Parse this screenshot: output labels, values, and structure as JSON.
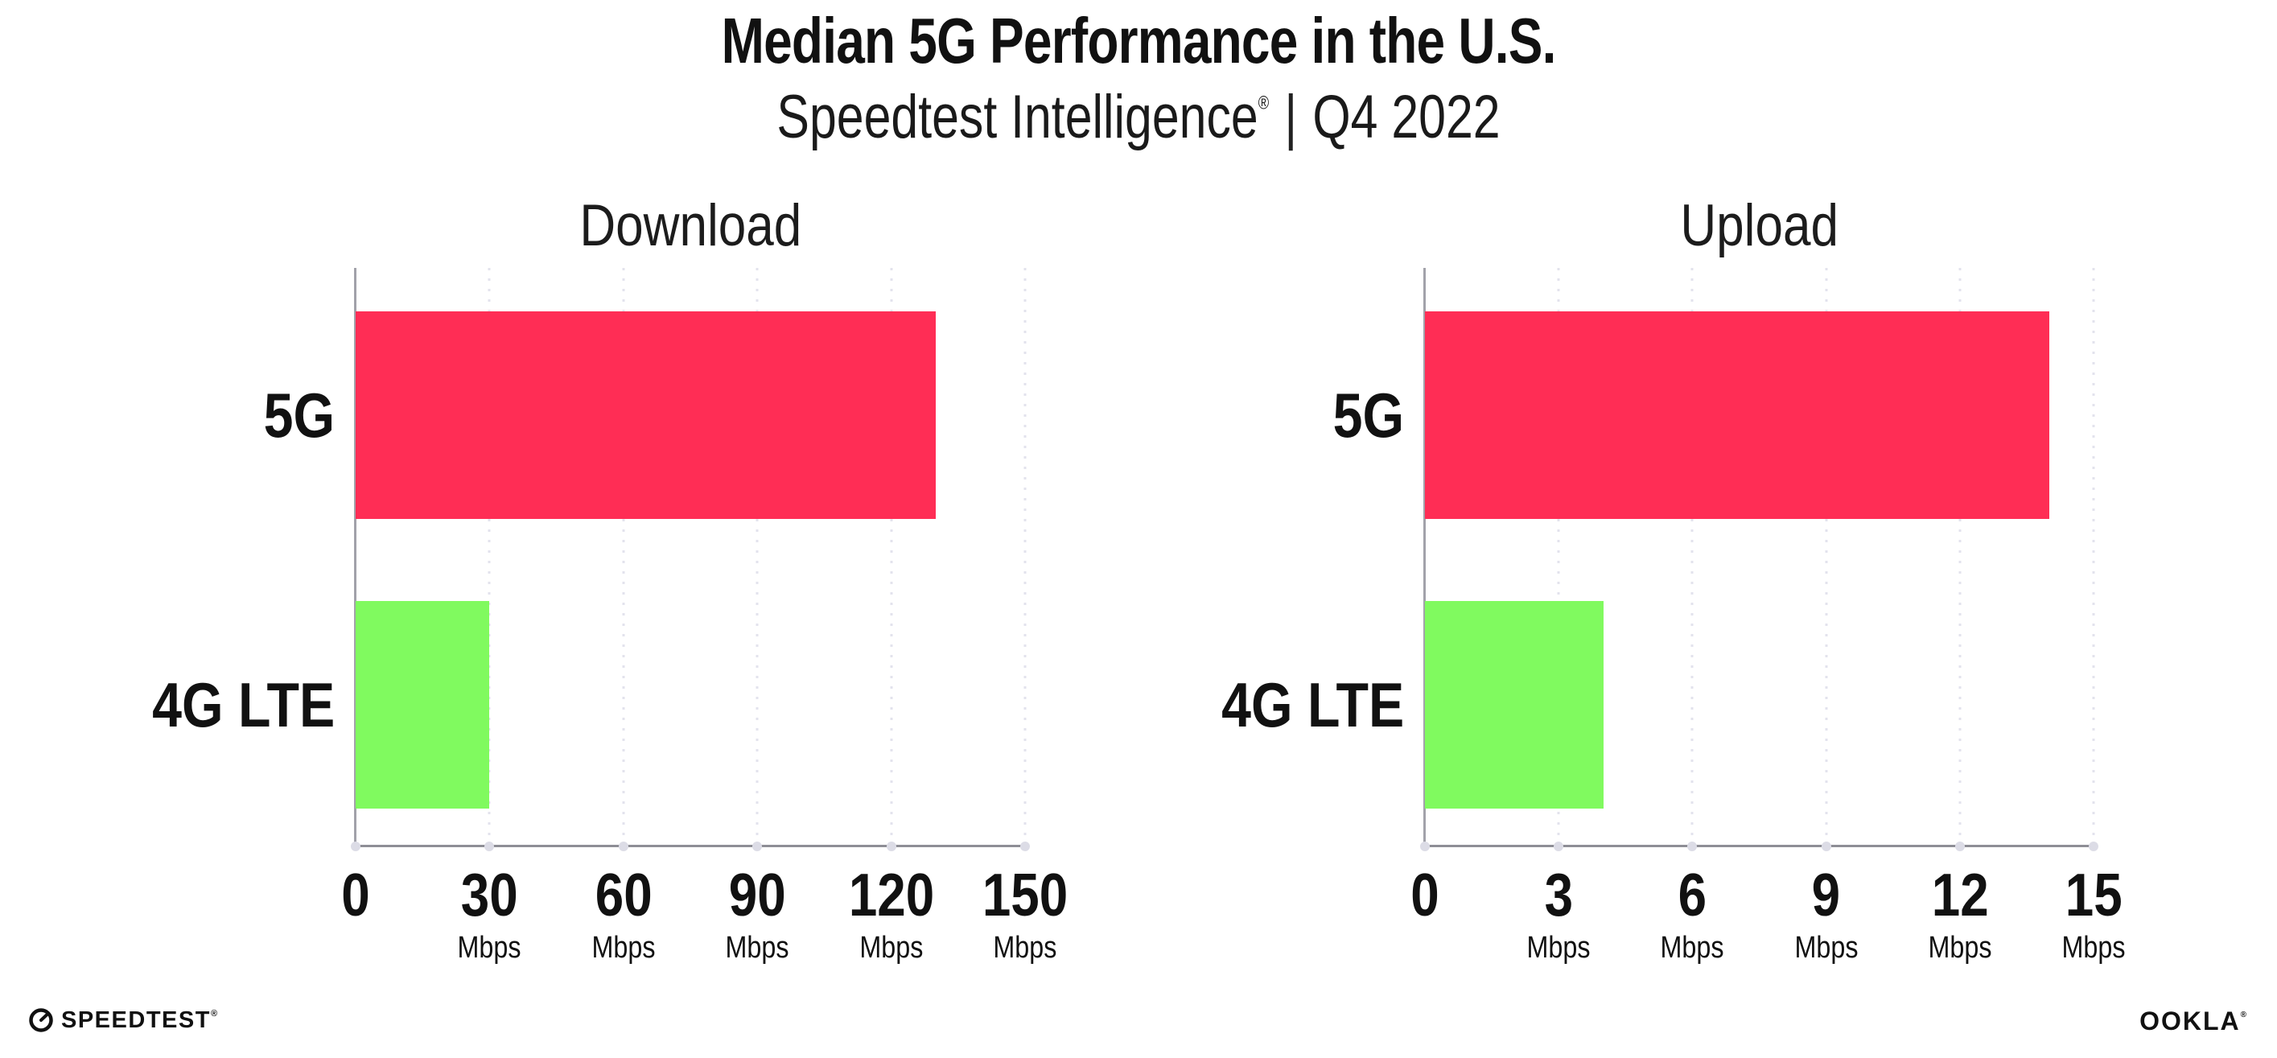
{
  "header": {
    "title": "Median 5G Performance in the U.S.",
    "subtitle_brand": "Speedtest Intelligence",
    "subtitle_registered_mark": "®",
    "subtitle_separator": "|",
    "subtitle_period": "Q4 2022"
  },
  "chart_data": [
    {
      "type": "bar",
      "orientation": "horizontal",
      "title": "Download",
      "categories": [
        "5G",
        "4G LTE"
      ],
      "values": [
        130,
        30
      ],
      "unit": "Mbps",
      "xlim": [
        0,
        150
      ],
      "xticks": [
        0,
        30,
        60,
        90,
        120,
        150
      ],
      "tick_unit": "Mbps",
      "bar_colors": [
        "#FF2D55",
        "#80FA5F"
      ],
      "grid": "vertical-dotted",
      "legend": "none"
    },
    {
      "type": "bar",
      "orientation": "horizontal",
      "title": "Upload",
      "categories": [
        "5G",
        "4G LTE"
      ],
      "values": [
        14,
        4
      ],
      "unit": "Mbps",
      "xlim": [
        0,
        15
      ],
      "xticks": [
        0,
        3,
        6,
        9,
        12,
        15
      ],
      "tick_unit": "Mbps",
      "bar_colors": [
        "#FF2D55",
        "#80FA5F"
      ],
      "grid": "vertical-dotted",
      "legend": "none"
    }
  ],
  "footer": {
    "speedtest_label": "SPEEDTEST",
    "speedtest_registered_mark": "®",
    "speedtest_icon": "speedtest-gauge-icon",
    "ookla_label": "OOKLA",
    "ookla_registered_mark": "®"
  },
  "colors": {
    "bar_5g": "#FF2D55",
    "bar_4g_lte": "#80FA5F",
    "gridline": "#E3E3ED",
    "axis_line": "#8E8E96",
    "axis_tick_dot": "#DCDCE6",
    "text": "#111111",
    "background": "#FFFFFF"
  }
}
